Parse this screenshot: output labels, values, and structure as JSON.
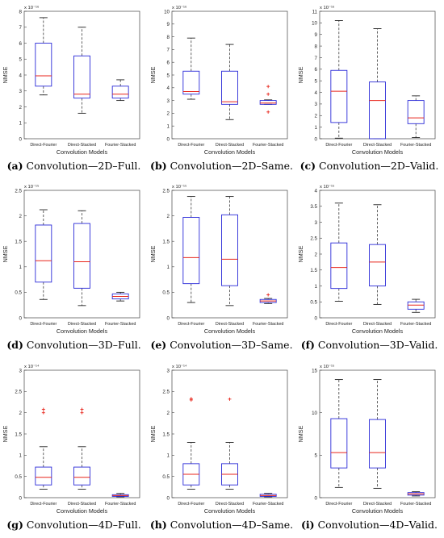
{
  "colors": {
    "box": "#2a2ad8",
    "median": "#e8261c",
    "whisker": "#222222",
    "outlier": "#e8261c"
  },
  "chart_data": [
    {
      "type": "box",
      "tag": "(a)",
      "caption": "Convolution—2D–Full.",
      "exponent": "x 10⁻¹⁶",
      "ylabel": "NMSE",
      "xlabel": "Convolution Models",
      "ylim": [
        0,
        8
      ],
      "yticks": [
        0,
        1,
        2,
        3,
        4,
        5,
        6,
        7,
        8
      ],
      "categories": [
        "Direct-Fourier",
        "Direct-Stacked",
        "Fourier-Stacked"
      ],
      "boxes": [
        {
          "min": 2.75,
          "q1": 3.3,
          "median": 3.95,
          "q3": 6.0,
          "max": 7.6,
          "outliers": []
        },
        {
          "min": 1.6,
          "q1": 2.55,
          "median": 2.8,
          "q3": 5.2,
          "max": 7.0,
          "outliers": []
        },
        {
          "min": 2.4,
          "q1": 2.55,
          "median": 2.8,
          "q3": 3.3,
          "max": 3.7,
          "outliers": []
        }
      ]
    },
    {
      "type": "box",
      "tag": "(b)",
      "caption": "Convolution—2D–Same.",
      "exponent": "x 10⁻¹⁶",
      "ylabel": "NMSE",
      "xlabel": "Convolution Models",
      "ylim": [
        0,
        10
      ],
      "yticks": [
        0,
        1,
        2,
        3,
        4,
        5,
        6,
        7,
        8,
        9,
        10
      ],
      "categories": [
        "Direct-Fourier",
        "Direct-Stacked",
        "Fourier-Stacked"
      ],
      "boxes": [
        {
          "min": 3.1,
          "q1": 3.5,
          "median": 3.7,
          "q3": 5.3,
          "max": 7.9,
          "outliers": []
        },
        {
          "min": 1.5,
          "q1": 2.7,
          "median": 2.9,
          "q3": 5.3,
          "max": 7.4,
          "outliers": []
        },
        {
          "min": 2.7,
          "q1": 2.7,
          "median": 2.8,
          "q3": 3.0,
          "max": 3.05,
          "outliers": [
            2.1,
            3.5,
            4.1
          ]
        }
      ]
    },
    {
      "type": "box",
      "tag": "(c)",
      "caption": "Convolution—2D–Valid.",
      "exponent": "x 10⁻¹⁶",
      "ylabel": "NMSE",
      "xlabel": "Convolution Models",
      "ylim": [
        0,
        11
      ],
      "yticks": [
        0,
        1,
        2,
        3,
        4,
        5,
        6,
        7,
        8,
        9,
        10,
        11
      ],
      "categories": [
        "Direct-Fourier",
        "Direct-Stacked",
        "Fourier-Stacked"
      ],
      "boxes": [
        {
          "min": 0.05,
          "q1": 1.4,
          "median": 4.1,
          "q3": 5.9,
          "max": 10.2,
          "outliers": []
        },
        {
          "min": 0.0,
          "q1": 0.0,
          "median": 3.3,
          "q3": 4.9,
          "max": 9.5,
          "outliers": []
        },
        {
          "min": 0.1,
          "q1": 1.3,
          "median": 1.8,
          "q3": 3.3,
          "max": 3.7,
          "outliers": []
        }
      ]
    },
    {
      "type": "box",
      "tag": "(d)",
      "caption": "Convolution—3D–Full.",
      "exponent": "x 10⁻¹⁵",
      "ylabel": "NMSE",
      "xlabel": "Convolution Models",
      "ylim": [
        0,
        2.5
      ],
      "yticks": [
        0,
        0.5,
        1,
        1.5,
        2,
        2.5
      ],
      "categories": [
        "Direct-Fourier",
        "Direct-Stacked",
        "Fourier-Stacked"
      ],
      "boxes": [
        {
          "min": 0.36,
          "q1": 0.7,
          "median": 1.12,
          "q3": 1.82,
          "max": 2.12,
          "outliers": []
        },
        {
          "min": 0.24,
          "q1": 0.58,
          "median": 1.1,
          "q3": 1.85,
          "max": 2.1,
          "outliers": []
        },
        {
          "min": 0.33,
          "q1": 0.37,
          "median": 0.42,
          "q3": 0.47,
          "max": 0.5,
          "outliers": []
        }
      ]
    },
    {
      "type": "box",
      "tag": "(e)",
      "caption": "Convolution—3D–Same.",
      "exponent": "x 10⁻¹⁵",
      "ylabel": "NMSE",
      "xlabel": "Convolution Models",
      "ylim": [
        0,
        2.5
      ],
      "yticks": [
        0,
        0.5,
        1,
        1.5,
        2,
        2.5
      ],
      "categories": [
        "Direct-Fourier",
        "Direct-Stacked",
        "Fourier-Stacked"
      ],
      "boxes": [
        {
          "min": 0.3,
          "q1": 0.67,
          "median": 1.18,
          "q3": 1.97,
          "max": 2.38,
          "outliers": []
        },
        {
          "min": 0.24,
          "q1": 0.63,
          "median": 1.15,
          "q3": 2.02,
          "max": 2.38,
          "outliers": []
        },
        {
          "min": 0.28,
          "q1": 0.3,
          "median": 0.33,
          "q3": 0.36,
          "max": 0.38,
          "outliers": [
            0.45
          ]
        }
      ]
    },
    {
      "type": "box",
      "tag": "(f)",
      "caption": "Convolution—3D–Valid.",
      "exponent": "x 10⁻¹⁵",
      "ylabel": "NMSE",
      "xlabel": "Convolution Models",
      "ylim": [
        0,
        4
      ],
      "yticks": [
        0,
        0.5,
        1,
        1.5,
        2,
        2.5,
        3,
        3.5,
        4
      ],
      "categories": [
        "Direct-Fourier",
        "Direct-Stacked",
        "Fourier-Stacked"
      ],
      "boxes": [
        {
          "min": 0.52,
          "q1": 0.92,
          "median": 1.58,
          "q3": 2.35,
          "max": 3.6,
          "outliers": []
        },
        {
          "min": 0.42,
          "q1": 1.0,
          "median": 1.75,
          "q3": 2.3,
          "max": 3.55,
          "outliers": []
        },
        {
          "min": 0.17,
          "q1": 0.27,
          "median": 0.4,
          "q3": 0.5,
          "max": 0.58,
          "outliers": []
        }
      ]
    },
    {
      "type": "box",
      "tag": "(g)",
      "caption": "Convolution—4D–Full.",
      "exponent": "x 10⁻¹⁴",
      "ylabel": "NMSE",
      "xlabel": "Convolution Models",
      "ylim": [
        0,
        3
      ],
      "yticks": [
        0,
        0.5,
        1,
        1.5,
        2,
        2.5,
        3
      ],
      "categories": [
        "Direct-Fourier",
        "Direct-Stacked",
        "Fourier-Stacked"
      ],
      "boxes": [
        {
          "min": 0.2,
          "q1": 0.3,
          "median": 0.48,
          "q3": 0.72,
          "max": 1.2,
          "outliers": [
            2.0,
            2.08
          ]
        },
        {
          "min": 0.2,
          "q1": 0.3,
          "median": 0.48,
          "q3": 0.72,
          "max": 1.2,
          "outliers": [
            2.0,
            2.08
          ]
        },
        {
          "min": 0.02,
          "q1": 0.03,
          "median": 0.05,
          "q3": 0.07,
          "max": 0.1,
          "outliers": []
        }
      ]
    },
    {
      "type": "box",
      "tag": "(h)",
      "caption": "Convolution—4D–Same.",
      "exponent": "x 10⁻¹⁴",
      "ylabel": "NMSE",
      "xlabel": "Convolution Models",
      "ylim": [
        0,
        3
      ],
      "yticks": [
        0,
        0.5,
        1,
        1.5,
        2,
        2.5,
        3
      ],
      "categories": [
        "Direct-Fourier",
        "Direct-Stacked",
        "Fourier-Stacked"
      ],
      "boxes": [
        {
          "min": 0.2,
          "q1": 0.3,
          "median": 0.55,
          "q3": 0.8,
          "max": 1.3,
          "outliers": [
            2.3,
            2.33
          ]
        },
        {
          "min": 0.2,
          "q1": 0.3,
          "median": 0.55,
          "q3": 0.8,
          "max": 1.3,
          "outliers": [
            2.32
          ]
        },
        {
          "min": 0.02,
          "q1": 0.03,
          "median": 0.05,
          "q3": 0.08,
          "max": 0.1,
          "outliers": []
        }
      ]
    },
    {
      "type": "box",
      "tag": "(i)",
      "caption": "Convolution—4D–Valid.",
      "exponent": "x 10⁻¹⁵",
      "ylabel": "NMSE",
      "xlabel": "Convolution Models",
      "ylim": [
        0,
        15
      ],
      "yticks": [
        0,
        5,
        10,
        15
      ],
      "categories": [
        "Direct-Fourier",
        "Direct-Stacked",
        "Fourier-Stacked"
      ],
      "boxes": [
        {
          "min": 1.2,
          "q1": 3.5,
          "median": 5.3,
          "q3": 9.3,
          "max": 13.9,
          "outliers": []
        },
        {
          "min": 1.1,
          "q1": 3.5,
          "median": 5.3,
          "q3": 9.2,
          "max": 13.9,
          "outliers": []
        },
        {
          "min": 0.2,
          "q1": 0.3,
          "median": 0.45,
          "q3": 0.6,
          "max": 0.7,
          "outliers": []
        }
      ]
    }
  ]
}
